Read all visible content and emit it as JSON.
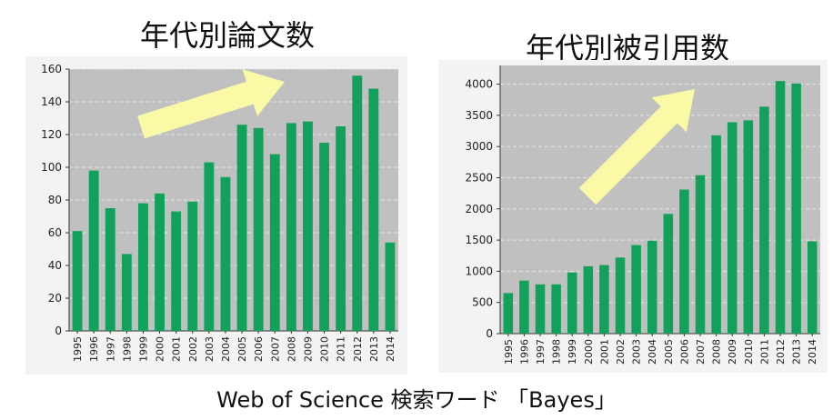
{
  "caption": "Web of Science 検索ワード 「Bayes」",
  "colors": {
    "bar": "#11a15b",
    "plot_bg": "#c0c0c0",
    "panel_bg": "#f3f3f3",
    "arrow_fill": "#faf9a6"
  },
  "chart_data": [
    {
      "type": "bar",
      "title": "年代別論文数",
      "categories": [
        "1995",
        "1996",
        "1997",
        "1998",
        "1999",
        "2000",
        "2001",
        "2002",
        "2003",
        "2004",
        "2005",
        "2006",
        "2007",
        "2008",
        "2009",
        "2010",
        "2011",
        "2012",
        "2013",
        "2014"
      ],
      "values": [
        61,
        98,
        75,
        47,
        78,
        84,
        73,
        79,
        103,
        94,
        126,
        124,
        108,
        127,
        128,
        115,
        125,
        156,
        148,
        54
      ],
      "ylim": [
        0,
        160
      ],
      "yticks": [
        0,
        20,
        40,
        60,
        80,
        100,
        120,
        140,
        160
      ],
      "grid": true,
      "annotation": "upward arrow"
    },
    {
      "type": "bar",
      "title": "年代別被引用数",
      "categories": [
        "1995",
        "1996",
        "1997",
        "1998",
        "1999",
        "2000",
        "2001",
        "2002",
        "2003",
        "2004",
        "2005",
        "2006",
        "2007",
        "2008",
        "2009",
        "2010",
        "2011",
        "2012",
        "2013",
        "2014"
      ],
      "values": [
        650,
        850,
        790,
        790,
        980,
        1080,
        1100,
        1220,
        1420,
        1490,
        1920,
        2310,
        2540,
        3180,
        3390,
        3420,
        3640,
        4050,
        4010,
        1480
      ],
      "ylim": [
        0,
        4300
      ],
      "yticks": [
        0,
        500,
        1000,
        1500,
        2000,
        2500,
        3000,
        3500,
        4000
      ],
      "grid": true,
      "annotation": "upward arrow"
    }
  ]
}
